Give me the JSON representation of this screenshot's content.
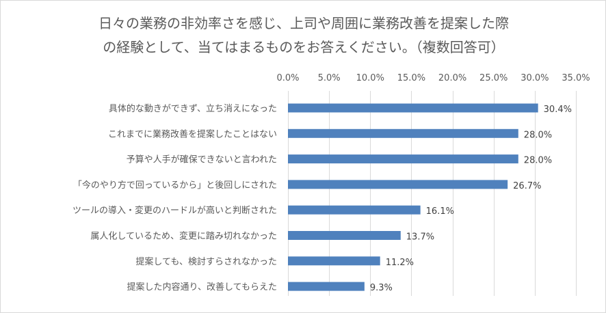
{
  "chart_data": {
    "type": "bar",
    "orientation": "horizontal",
    "title_lines": [
      "日々の業務の非効率さを感じ、上司や周囲に業務改善を提案した際",
      "の経験として、当てはまるものをお答えください。（複数回答可）"
    ],
    "categories": [
      "具体的な動きができず、立ち消えになった",
      "これまでに業務改善を提案したことはない",
      "予算や人手が確保できないと言われた",
      "「今のやり方で回っているから」と後回しにされた",
      "ツールの導入・変更のハードルが高いと判断された",
      "属人化しているため、変更に踏み切れなかった",
      "提案しても、検討すらされなかった",
      "提案した内容通り、改善してもらえた"
    ],
    "values": [
      30.4,
      28.0,
      28.0,
      26.7,
      16.1,
      13.7,
      11.2,
      9.3
    ],
    "data_labels": [
      "30.4%",
      "28.0%",
      "28.0%",
      "26.7%",
      "16.1%",
      "13.7%",
      "11.2%",
      "9.3%"
    ],
    "xlim": [
      0,
      35
    ],
    "ticks": [
      0,
      5,
      10,
      15,
      20,
      25,
      30,
      35
    ],
    "tick_labels": [
      "0.0%",
      "5.0%",
      "10.0%",
      "15.0%",
      "20.0%",
      "25.0%",
      "30.0%",
      "35.0%"
    ],
    "axis_position": "top",
    "grid": true,
    "bar_color": "#4f81bd"
  }
}
